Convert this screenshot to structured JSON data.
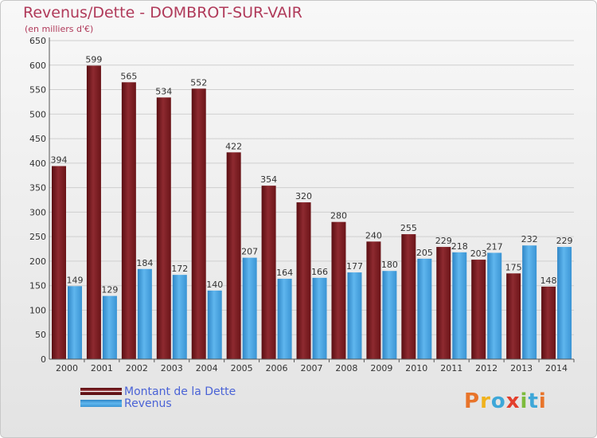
{
  "header": {
    "title": "Revenus/Dette - DOMBROT-SUR-VAIR",
    "subtitle": "(en milliers d'€)"
  },
  "legend": {
    "items": [
      {
        "label": "Montant de la Dette",
        "color": "#7a1a1e"
      },
      {
        "label": "Revenus",
        "color": "#4aa3e0"
      }
    ]
  },
  "logo": {
    "text": "Proxiti",
    "colors": [
      "#e8742a",
      "#f0b21c",
      "#3ea7d8",
      "#e33f2c",
      "#7dbb3c",
      "#3ea7d8",
      "#e8742a"
    ]
  },
  "colors": {
    "dette": "#7a1a1e",
    "revenus": "#4aa3e0",
    "axis_text": "#333333"
  },
  "chart_data": {
    "type": "bar",
    "title": "Revenus/Dette - DOMBROT-SUR-VAIR",
    "subtitle": "(en milliers d'€)",
    "categories": [
      "2000",
      "2001",
      "2002",
      "2003",
      "2004",
      "2005",
      "2006",
      "2007",
      "2008",
      "2009",
      "2010",
      "2011",
      "2012",
      "2013",
      "2014"
    ],
    "series": [
      {
        "name": "Montant de la Dette",
        "values": [
          394,
          599,
          565,
          534,
          552,
          422,
          354,
          320,
          280,
          240,
          255,
          229,
          203,
          175,
          148
        ]
      },
      {
        "name": "Revenus",
        "values": [
          149,
          129,
          184,
          172,
          140,
          207,
          164,
          166,
          177,
          180,
          205,
          218,
          217,
          232,
          229
        ]
      }
    ],
    "ylim": [
      0,
      650
    ],
    "yticks": [
      0,
      50,
      100,
      150,
      200,
      250,
      300,
      350,
      400,
      450,
      500,
      550,
      600,
      650
    ],
    "grid": true,
    "legend_position": "bottom-left"
  }
}
